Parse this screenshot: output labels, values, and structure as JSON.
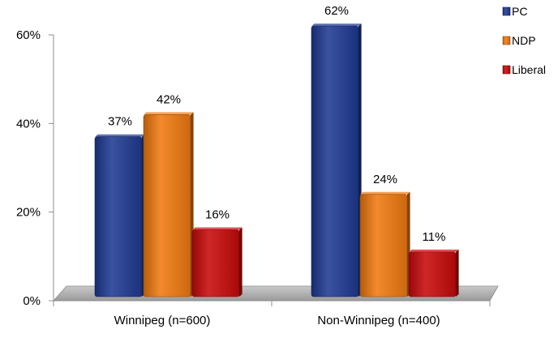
{
  "chart_data": {
    "type": "bar",
    "categories": [
      "Winnipeg (n=600)",
      "Non-Winnipeg (n=400)"
    ],
    "series": [
      {
        "name": "PC",
        "values": [
          37,
          62
        ],
        "labels": [
          "37%",
          "62%"
        ],
        "color": "#1f3a93"
      },
      {
        "name": "NDP",
        "values": [
          42,
          24
        ],
        "labels": [
          "42%",
          "24%"
        ],
        "color": "#f07a10"
      },
      {
        "name": "Liberal",
        "values": [
          16,
          11
        ],
        "labels": [
          "16%",
          "11%"
        ],
        "color": "#c80a0a"
      }
    ],
    "y_ticks": [
      0,
      20,
      40,
      60
    ],
    "y_tick_labels": [
      "0%",
      "20%",
      "40%",
      "60%"
    ],
    "ylim": [
      0,
      60
    ],
    "grid": false,
    "legend_position": "top-right",
    "floor_color": "#a6a6a6"
  }
}
